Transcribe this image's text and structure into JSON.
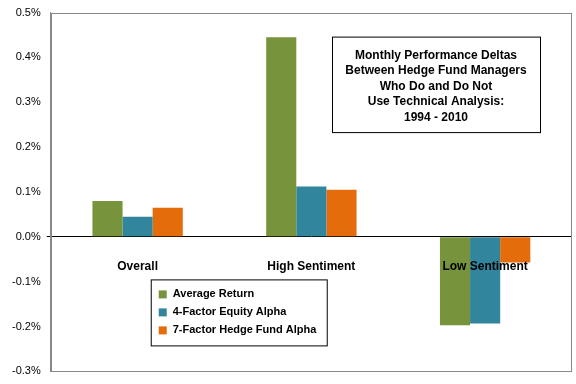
{
  "chart_data": {
    "type": "bar",
    "title": [
      "Monthly Performance Deltas",
      "Between Hedge Fund Managers",
      "Who Do and Do Not",
      "Use Technical Analysis:",
      "1994 - 2010"
    ],
    "categories": [
      "Overall",
      "High Sentiment",
      "Low Sentiment"
    ],
    "series": [
      {
        "name": "Average Return",
        "color": "#77933C",
        "values": [
          0.08,
          0.445,
          -0.197
        ]
      },
      {
        "name": "4-Factor Equity Alpha",
        "color": "#31859C",
        "values": [
          0.045,
          0.112,
          -0.193
        ]
      },
      {
        "name": "7-Factor Hedge Fund Alpha",
        "color": "#E46C0A",
        "values": [
          0.065,
          0.105,
          -0.057
        ]
      }
    ],
    "ylim": [
      -0.3,
      0.5
    ],
    "yticks": [
      {
        "value": -0.3,
        "label": "-0.3%"
      },
      {
        "value": -0.2,
        "label": "-0.2%"
      },
      {
        "value": -0.1,
        "label": "-0.1%"
      },
      {
        "value": 0,
        "label": "0.0%"
      },
      {
        "value": 0.1,
        "label": "0.1%"
      },
      {
        "value": 0.2,
        "label": "0.2%"
      },
      {
        "value": 0.3,
        "label": "0.3%"
      },
      {
        "value": 0.4,
        "label": "0.4%"
      },
      {
        "value": 0.5,
        "label": "0.5%"
      }
    ],
    "grid": false,
    "legend": "lower left"
  }
}
